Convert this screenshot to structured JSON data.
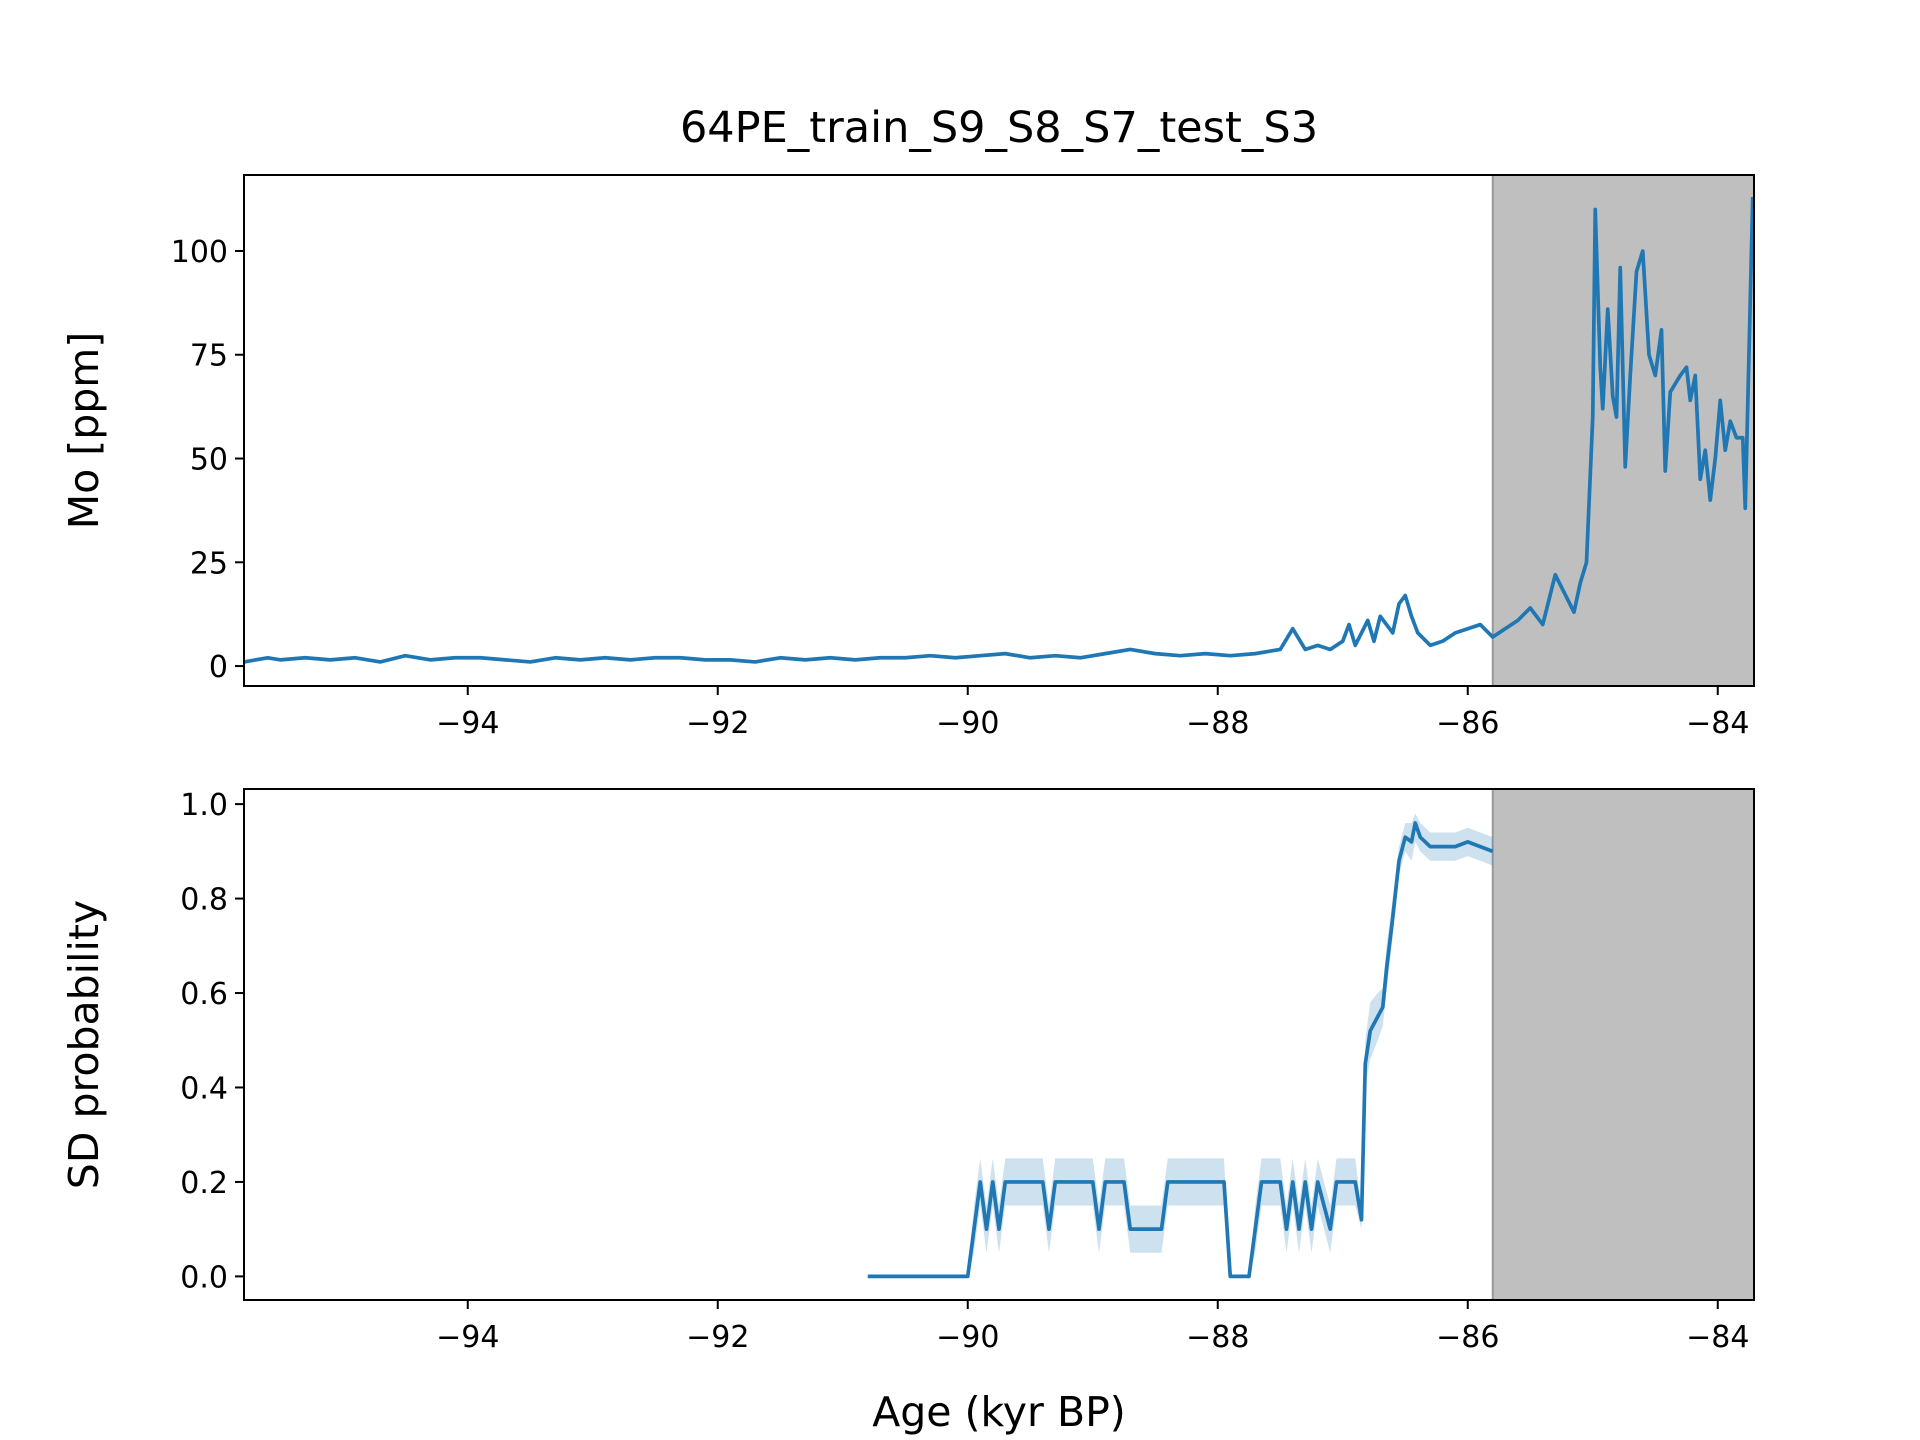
{
  "chart_data": [
    {
      "type": "line",
      "title": "64PE_train_S9_S8_S7_test_S3",
      "ylabel": "Mo [ppm]",
      "xlim": [
        -95.79,
        -83.71
      ],
      "xticks": [
        {
          "value": -94,
          "label": "−94"
        },
        {
          "value": -92,
          "label": "−92"
        },
        {
          "value": -90,
          "label": "−90"
        },
        {
          "value": -88,
          "label": "−88"
        },
        {
          "value": -86,
          "label": "−86"
        },
        {
          "value": -84,
          "label": "−84"
        }
      ],
      "ylim": [
        -4.8,
        118.3
      ],
      "yticks": [
        0,
        25,
        50,
        75,
        100
      ],
      "shade_from": -85.8,
      "shade_color": "#bfbfbf",
      "series": [
        {
          "name": "Mo",
          "color": "#1f77b4",
          "x": [
            -95.79,
            -95.6,
            -95.5,
            -95.3,
            -95.1,
            -94.9,
            -94.7,
            -94.5,
            -94.3,
            -94.1,
            -93.9,
            -93.7,
            -93.5,
            -93.3,
            -93.1,
            -92.9,
            -92.7,
            -92.5,
            -92.3,
            -92.1,
            -91.9,
            -91.7,
            -91.5,
            -91.3,
            -91.1,
            -90.9,
            -90.7,
            -90.5,
            -90.3,
            -90.1,
            -89.9,
            -89.7,
            -89.5,
            -89.3,
            -89.1,
            -88.9,
            -88.7,
            -88.5,
            -88.3,
            -88.1,
            -87.9,
            -87.7,
            -87.5,
            -87.4,
            -87.3,
            -87.2,
            -87.1,
            -87.0,
            -86.95,
            -86.9,
            -86.8,
            -86.75,
            -86.7,
            -86.6,
            -86.55,
            -86.5,
            -86.45,
            -86.4,
            -86.3,
            -86.2,
            -86.1,
            -86.0,
            -85.9,
            -85.8,
            -85.7,
            -85.6,
            -85.5,
            -85.4,
            -85.3,
            -85.2,
            -85.15,
            -85.1,
            -85.05,
            -85.0,
            -84.98,
            -84.94,
            -84.92,
            -84.88,
            -84.84,
            -84.81,
            -84.78,
            -84.74,
            -84.7,
            -84.65,
            -84.6,
            -84.55,
            -84.5,
            -84.45,
            -84.42,
            -84.38,
            -84.3,
            -84.25,
            -84.22,
            -84.18,
            -84.14,
            -84.1,
            -84.06,
            -84.02,
            -83.98,
            -83.94,
            -83.9,
            -83.85,
            -83.8,
            -83.78,
            -83.72
          ],
          "values": [
            1,
            2,
            1.5,
            2,
            1.5,
            2,
            1,
            2.5,
            1.5,
            2,
            2,
            1.5,
            1,
            2,
            1.5,
            2,
            1.5,
            2,
            2,
            1.5,
            1.5,
            1,
            2,
            1.5,
            2,
            1.5,
            2,
            2,
            2.5,
            2,
            2.5,
            3,
            2,
            2.5,
            2,
            3,
            4,
            3,
            2.5,
            3,
            2.5,
            3,
            4,
            9,
            4,
            5,
            4,
            6,
            10,
            5,
            11,
            6,
            12,
            8,
            15,
            17,
            12,
            8,
            5,
            6,
            8,
            9,
            10,
            7,
            9,
            11,
            14,
            10,
            22,
            16,
            13,
            20,
            25,
            60,
            110,
            72,
            62,
            86,
            65,
            60,
            96,
            48,
            70,
            95,
            100,
            75,
            70,
            81,
            47,
            66,
            70,
            72,
            64,
            70,
            45,
            52,
            40,
            50,
            64,
            52,
            59,
            55,
            55,
            38,
            113
          ]
        }
      ]
    },
    {
      "type": "line",
      "ylabel": "SD probability",
      "xlabel": "Age (kyr BP)",
      "xlim": [
        -95.79,
        -83.71
      ],
      "xticks": [
        {
          "value": -94,
          "label": "−94"
        },
        {
          "value": -92,
          "label": "−92"
        },
        {
          "value": -90,
          "label": "−90"
        },
        {
          "value": -88,
          "label": "−88"
        },
        {
          "value": -86,
          "label": "−86"
        },
        {
          "value": -84,
          "label": "−84"
        }
      ],
      "ylim": [
        -0.05,
        1.032
      ],
      "yticks": [
        {
          "value": 0,
          "label": "0.0"
        },
        0.2,
        0.4,
        0.6,
        0.8,
        {
          "value": 1,
          "label": "1.0"
        }
      ],
      "shade_from": -85.8,
      "shade_color": "#bfbfbf",
      "series": [
        {
          "name": "SD probability",
          "color": "#1f77b4",
          "band_color": "#1f77b4",
          "x": [
            -90.8,
            -90.0,
            -89.95,
            -89.9,
            -89.85,
            -89.8,
            -89.75,
            -89.7,
            -89.65,
            -89.4,
            -89.35,
            -89.3,
            -89.0,
            -88.95,
            -88.9,
            -88.75,
            -88.7,
            -88.45,
            -88.4,
            -88.35,
            -87.95,
            -87.9,
            -87.75,
            -87.7,
            -87.65,
            -87.5,
            -87.45,
            -87.4,
            -87.35,
            -87.3,
            -87.25,
            -87.2,
            -87.1,
            -87.05,
            -87.0,
            -86.9,
            -86.85,
            -86.82,
            -86.78,
            -86.72,
            -86.68,
            -86.65,
            -86.6,
            -86.55,
            -86.5,
            -86.45,
            -86.42,
            -86.38,
            -86.3,
            -86.2,
            -86.1,
            -86.0,
            -85.9,
            -85.8
          ],
          "values": [
            0,
            0,
            0.1,
            0.2,
            0.1,
            0.2,
            0.1,
            0.2,
            0.2,
            0.2,
            0.1,
            0.2,
            0.2,
            0.1,
            0.2,
            0.2,
            0.1,
            0.1,
            0.2,
            0.2,
            0.2,
            0,
            0,
            0.1,
            0.2,
            0.2,
            0.1,
            0.2,
            0.1,
            0.2,
            0.1,
            0.2,
            0.1,
            0.2,
            0.2,
            0.2,
            0.12,
            0.45,
            0.52,
            0.55,
            0.57,
            0.65,
            0.76,
            0.88,
            0.93,
            0.92,
            0.96,
            0.93,
            0.91,
            0.91,
            0.91,
            0.92,
            0.91,
            0.9
          ],
          "lower": [
            0,
            0,
            0.05,
            0.15,
            0.05,
            0.15,
            0.05,
            0.15,
            0.15,
            0.15,
            0.05,
            0.15,
            0.15,
            0.05,
            0.15,
            0.15,
            0.05,
            0.05,
            0.15,
            0.15,
            0.15,
            0,
            0,
            0.05,
            0.15,
            0.15,
            0.05,
            0.15,
            0.05,
            0.15,
            0.05,
            0.15,
            0.05,
            0.15,
            0.15,
            0.15,
            0.1,
            0.4,
            0.46,
            0.5,
            0.53,
            0.6,
            0.72,
            0.85,
            0.9,
            0.88,
            0.92,
            0.9,
            0.88,
            0.88,
            0.88,
            0.89,
            0.88,
            0.87
          ],
          "upper": [
            0,
            0,
            0.15,
            0.25,
            0.15,
            0.25,
            0.15,
            0.25,
            0.25,
            0.25,
            0.15,
            0.25,
            0.25,
            0.15,
            0.25,
            0.25,
            0.15,
            0.15,
            0.25,
            0.25,
            0.25,
            0,
            0,
            0.15,
            0.25,
            0.25,
            0.15,
            0.25,
            0.15,
            0.25,
            0.15,
            0.25,
            0.15,
            0.25,
            0.25,
            0.25,
            0.14,
            0.5,
            0.58,
            0.6,
            0.61,
            0.7,
            0.8,
            0.91,
            0.96,
            0.96,
            0.98,
            0.96,
            0.94,
            0.94,
            0.94,
            0.95,
            0.94,
            0.93
          ]
        }
      ]
    }
  ]
}
